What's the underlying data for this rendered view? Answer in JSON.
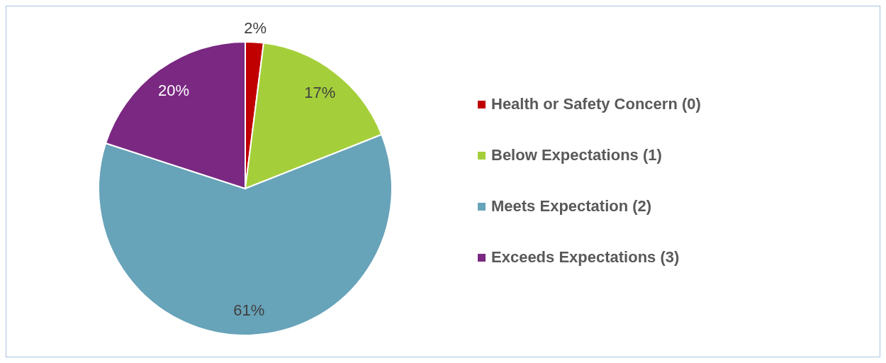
{
  "chart_data": {
    "type": "pie",
    "categories": [
      "Health or Safety Concern (0)",
      "Below Expectations (1)",
      "Meets Expectation (2)",
      "Exceeds Expectations (3)"
    ],
    "values": [
      2,
      17,
      61,
      20
    ],
    "colors": [
      "#c00000",
      "#a5cf3a",
      "#67a3b9",
      "#7a2882"
    ],
    "value_labels": [
      "2%",
      "17%",
      "61%",
      "20%"
    ],
    "legend": "right"
  }
}
